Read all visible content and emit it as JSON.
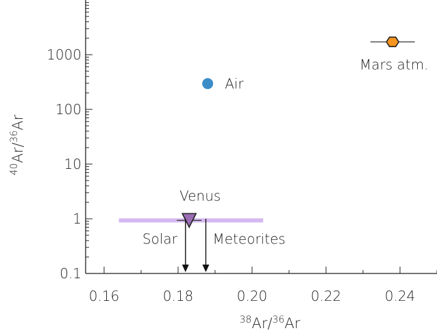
{
  "chart_data": {
    "type": "scatter",
    "xlabel": {
      "sup1": "38",
      "main1": "Ar/",
      "sup2": "36",
      "main2": "Ar"
    },
    "ylabel": {
      "sup1": "40",
      "main1": "Ar/",
      "sup2": "36",
      "main2": "Ar"
    },
    "xlim": [
      0.155,
      0.25
    ],
    "ylim": [
      0.1,
      10000
    ],
    "yscale": "log",
    "xticks": [
      0.16,
      0.18,
      0.2,
      0.22,
      0.24
    ],
    "xtick_labels": [
      "0.16",
      "0.18",
      "0.20",
      "0.22",
      "0.24"
    ],
    "yticks": [
      0.1,
      1,
      10,
      100,
      1000
    ],
    "ytick_labels": [
      "0.1",
      "1",
      "10",
      "100",
      "1000"
    ],
    "grid": false,
    "points": [
      {
        "label": "Air",
        "x": 0.188,
        "y": 296,
        "marker": "circle",
        "color": "#3b8dc8"
      },
      {
        "label": "Mars atm.",
        "x": 0.238,
        "y": 1714,
        "xerr": 0.006,
        "marker": "hexagon",
        "color": "#f7941d"
      },
      {
        "label": "Venus",
        "x": 0.183,
        "y": 1.11,
        "xmin": 0.164,
        "xmax": 0.203,
        "marker": "triangle-down",
        "color": "#9b6bb5",
        "band_color": "#d5b8f0"
      }
    ],
    "upper_limits": [
      {
        "label": "Solar",
        "x": 0.182,
        "y": 1.0
      },
      {
        "label": "Meteorites",
        "x": 0.1875,
        "y": 1.0
      }
    ]
  }
}
